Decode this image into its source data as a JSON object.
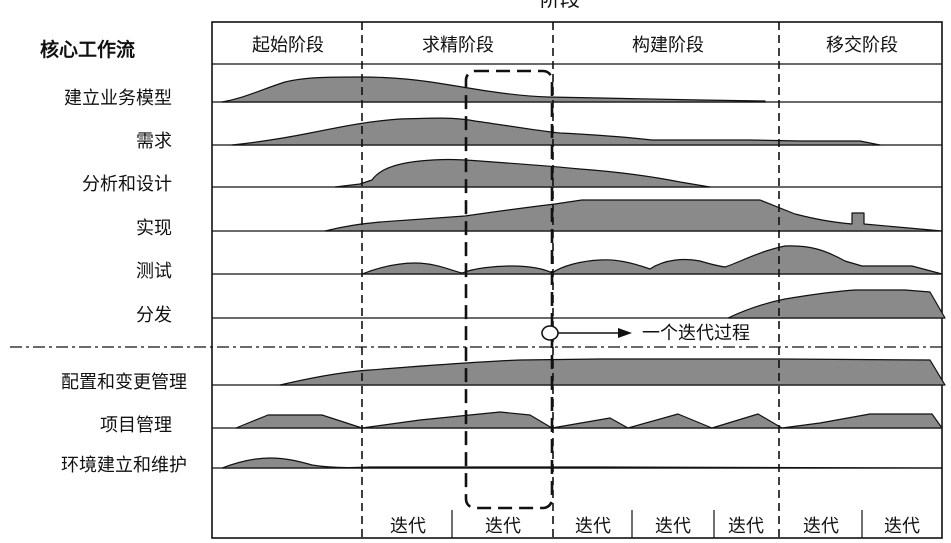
{
  "header_partial": "阶段",
  "core_workflows_title": "核心工作流",
  "phases": [
    "起始阶段",
    "求精阶段",
    "构建阶段",
    "移交阶段"
  ],
  "core_workflows": [
    "建立业务模型",
    "需求",
    "分析和设计",
    "实现",
    "测试",
    "分发"
  ],
  "support_workflows": [
    "配置和变更管理",
    "项目管理",
    "环境建立和维护"
  ],
  "iteration_label": "迭代",
  "iteration_annotation": "一个迭代过程",
  "colors": {
    "fill": "#8a8a8a",
    "line": "#111111"
  }
}
